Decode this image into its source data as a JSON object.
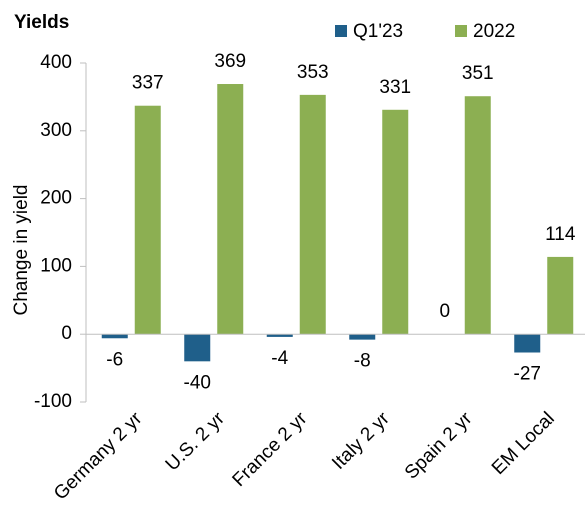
{
  "chart_data": {
    "type": "bar",
    "title": "Yields",
    "ylabel": "Change in yield",
    "categories": [
      "Germany 2 yr",
      "U.S. 2 yr",
      "France 2 yr",
      "Italy 2 yr",
      "Spain 2 yr",
      "EM Local"
    ],
    "series": [
      {
        "name": "Q1'23",
        "color": "#1f5f8a",
        "values": [
          -6,
          -40,
          -4,
          -8,
          0,
          -27
        ]
      },
      {
        "name": "2022",
        "color": "#8caf52",
        "values": [
          337,
          369,
          353,
          331,
          351,
          114
        ]
      }
    ],
    "ylim": [
      -100,
      400
    ],
    "yticks": [
      -100,
      0,
      100,
      200,
      300,
      400
    ],
    "legend": "top"
  }
}
